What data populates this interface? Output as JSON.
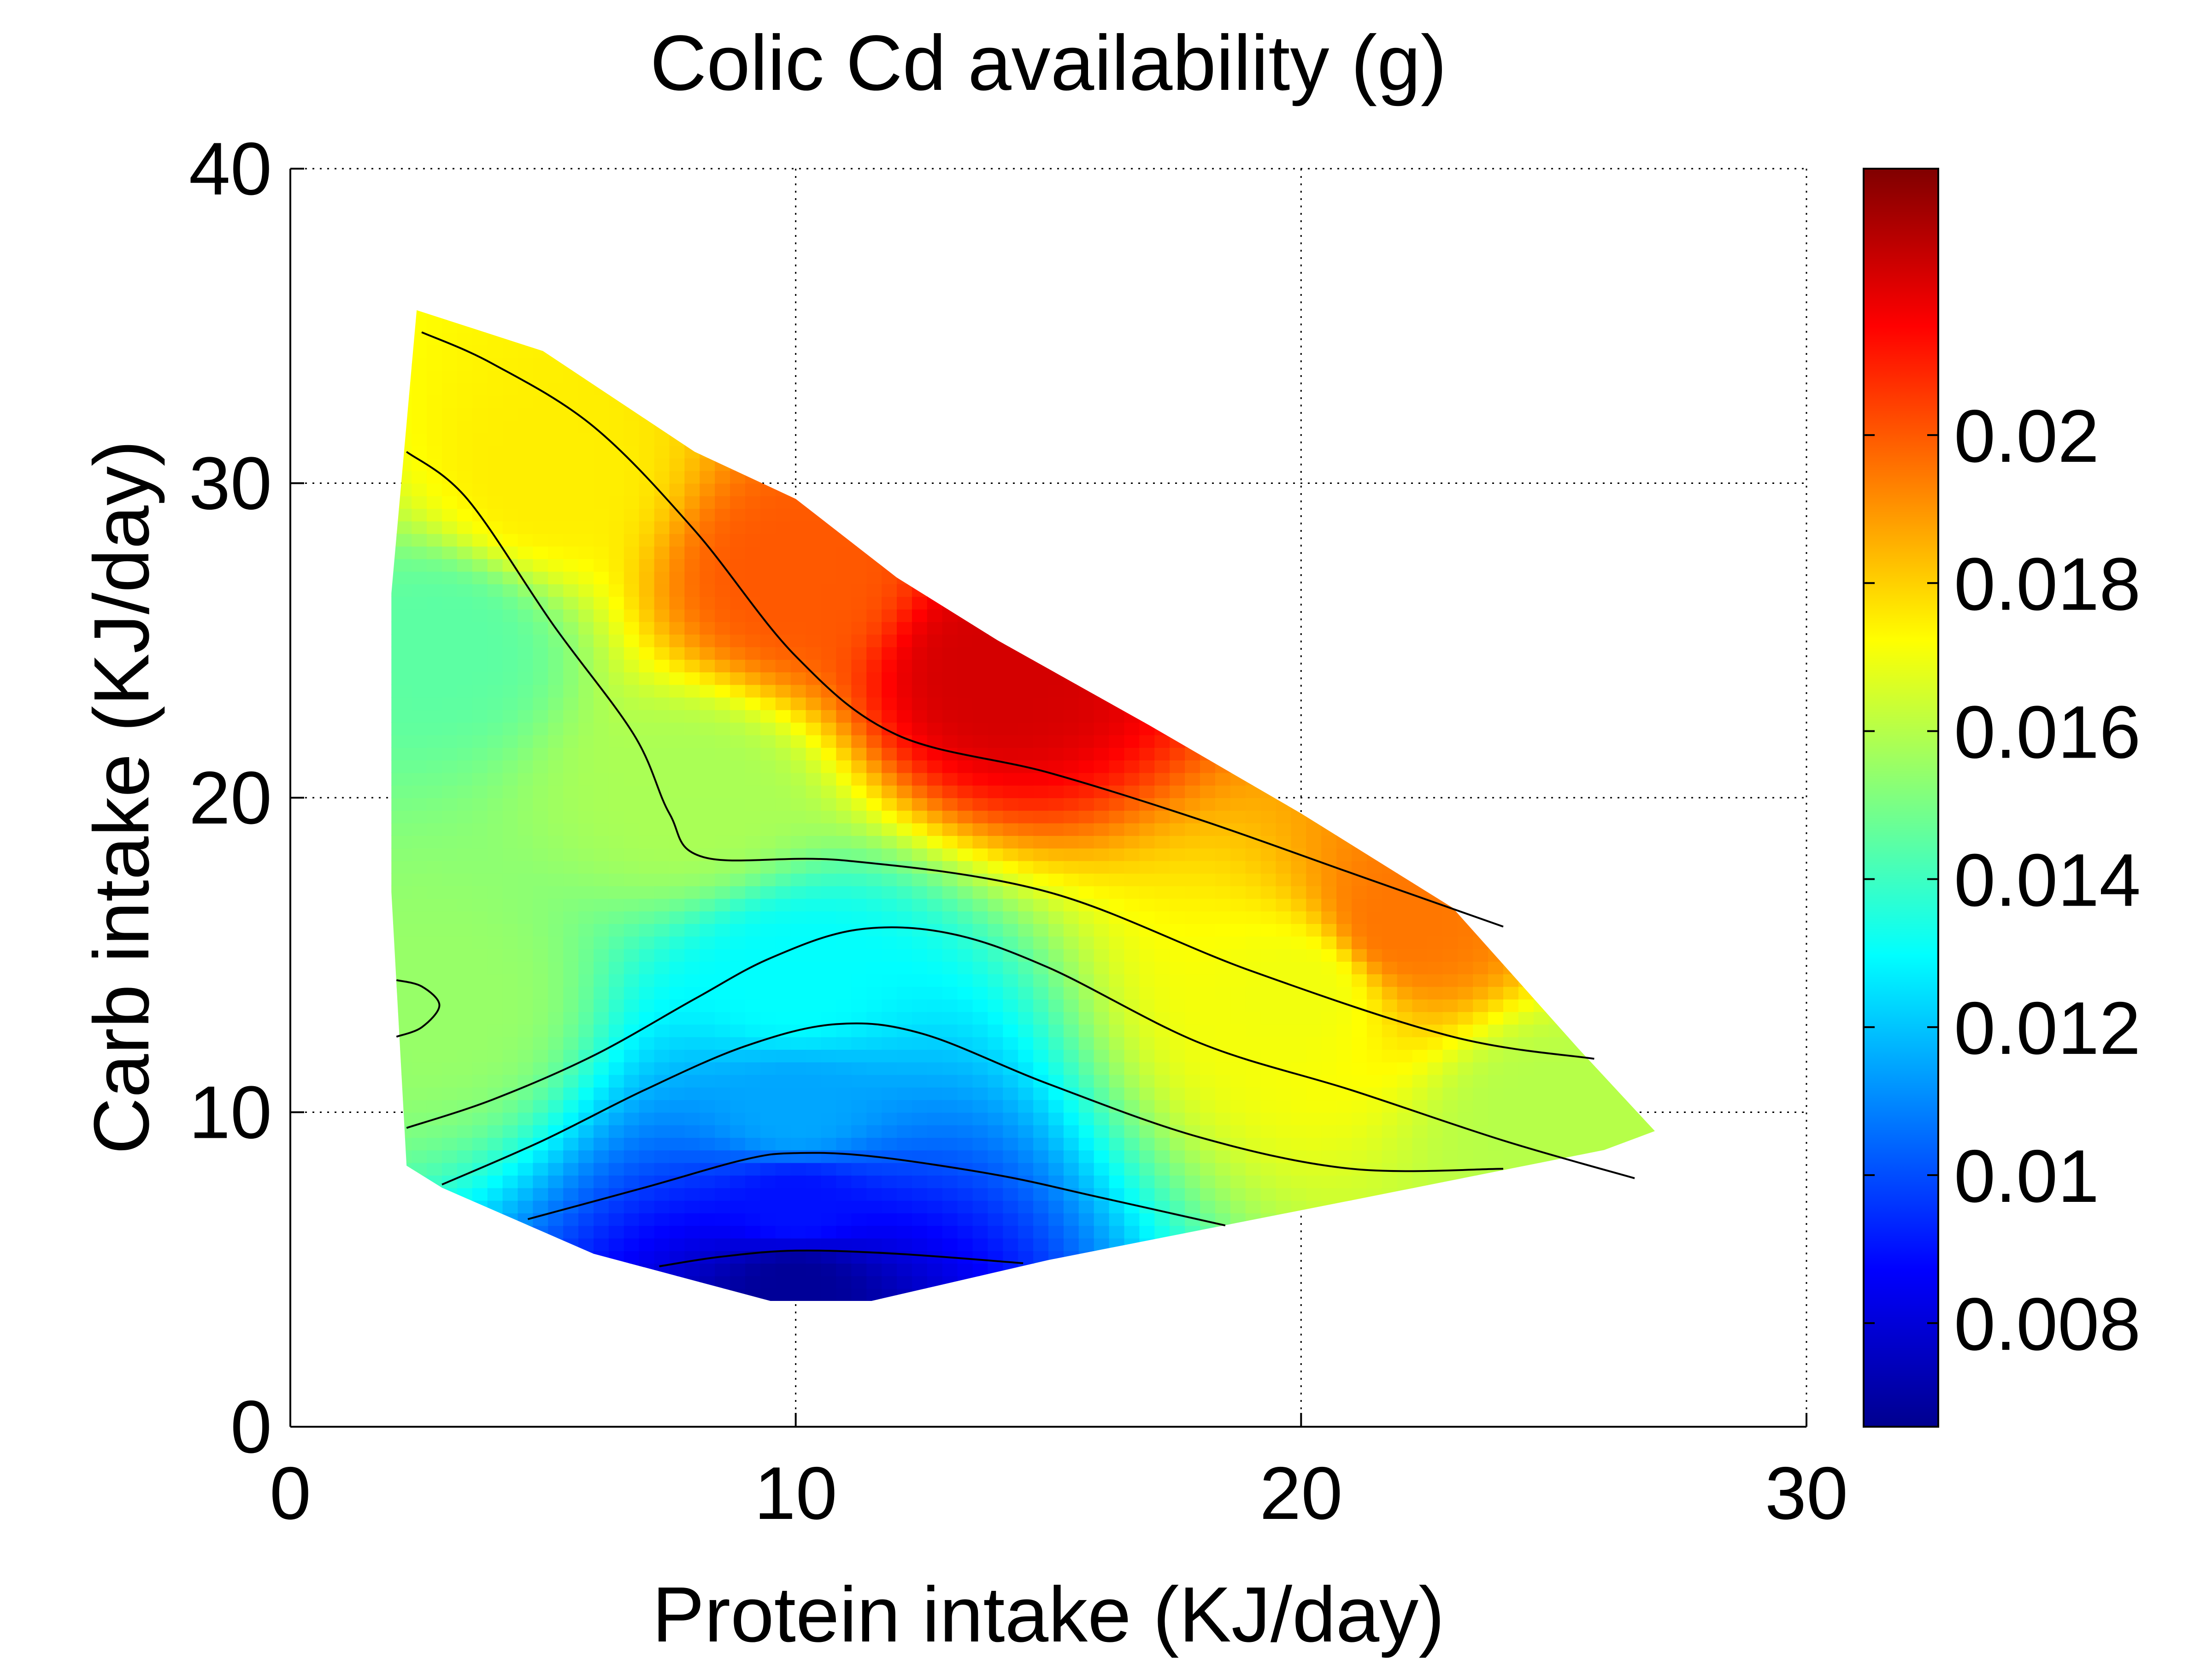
{
  "chart_data": {
    "type": "heatmap",
    "title": "Colic Cd availability (g)",
    "xlabel": "Protein intake (KJ/day)",
    "ylabel": "Carb intake (KJ/day)",
    "xlim": [
      0,
      30
    ],
    "ylim": [
      0,
      40
    ],
    "xticks": [
      0,
      10,
      20,
      30
    ],
    "yticks": [
      0,
      10,
      20,
      30,
      40
    ],
    "grid": true,
    "colormap": "jet",
    "colorbar": {
      "location": "right",
      "range": [
        0.0066,
        0.0236
      ],
      "ticks": [
        0.008,
        0.01,
        0.012,
        0.014,
        0.016,
        0.018,
        0.02
      ],
      "tick_labels": [
        "0.008",
        "0.01",
        "0.012",
        "0.014",
        "0.016",
        "0.018",
        "0.02"
      ]
    },
    "domain_boundary": [
      [
        2.0,
        26.5
      ],
      [
        2.5,
        35.5
      ],
      [
        5,
        34.2
      ],
      [
        8,
        31.0
      ],
      [
        10,
        29.5
      ],
      [
        12,
        27.0
      ],
      [
        14,
        25.0
      ],
      [
        17,
        22.3
      ],
      [
        20,
        19.5
      ],
      [
        23,
        16.5
      ],
      [
        25.5,
        12.0
      ],
      [
        27,
        9.4
      ],
      [
        26,
        8.8
      ],
      [
        21,
        7.2
      ],
      [
        15,
        5.3
      ],
      [
        11.5,
        4.0
      ],
      [
        9.5,
        4.0
      ],
      [
        6,
        5.5
      ],
      [
        3,
        7.6
      ],
      [
        2.3,
        8.3
      ],
      [
        2.0,
        17.0
      ]
    ],
    "surface_samples": [
      {
        "x": 3,
        "y": 25,
        "z": 0.0145
      },
      {
        "x": 3,
        "y": 13.5,
        "z": 0.0155
      },
      {
        "x": 5,
        "y": 30,
        "z": 0.0175
      },
      {
        "x": 8,
        "y": 20,
        "z": 0.0158
      },
      {
        "x": 10,
        "y": 27,
        "z": 0.02
      },
      {
        "x": 14,
        "y": 24,
        "z": 0.0222
      },
      {
        "x": 10,
        "y": 14,
        "z": 0.013
      },
      {
        "x": 10,
        "y": 10,
        "z": 0.0115
      },
      {
        "x": 10,
        "y": 7,
        "z": 0.009
      },
      {
        "x": 10,
        "y": 4.5,
        "z": 0.007
      },
      {
        "x": 20,
        "y": 14,
        "z": 0.017
      },
      {
        "x": 22,
        "y": 16,
        "z": 0.0195
      },
      {
        "x": 25,
        "y": 10,
        "z": 0.016
      }
    ],
    "contour_lines": [
      {
        "points": [
          [
            2.6,
            34.8
          ],
          [
            4,
            33.8
          ],
          [
            6,
            31.8
          ],
          [
            8,
            28.5
          ],
          [
            10,
            24.5
          ],
          [
            12,
            22.0
          ],
          [
            15,
            20.8
          ],
          [
            18,
            19.3
          ],
          [
            21,
            17.6
          ],
          [
            24,
            15.9
          ]
        ]
      },
      {
        "points": [
          [
            2.3,
            31.0
          ],
          [
            3.5,
            29.5
          ],
          [
            5.2,
            25.5
          ],
          [
            6.8,
            22.0
          ],
          [
            7.5,
            19.5
          ],
          [
            8.2,
            18.1
          ],
          [
            11,
            18.0
          ],
          [
            15,
            17.0
          ],
          [
            19,
            14.5
          ],
          [
            23,
            12.4
          ],
          [
            25.8,
            11.7
          ]
        ]
      },
      {
        "points": [
          [
            2.3,
            9.5
          ],
          [
            4,
            10.4
          ],
          [
            6,
            11.8
          ],
          [
            8,
            13.6
          ],
          [
            9.5,
            14.9
          ],
          [
            11.2,
            15.8
          ],
          [
            13,
            15.7
          ],
          [
            15,
            14.6
          ],
          [
            18,
            12.2
          ],
          [
            21,
            10.7
          ],
          [
            24,
            9.1
          ],
          [
            26.6,
            7.9
          ]
        ]
      },
      {
        "points": [
          [
            3,
            7.7
          ],
          [
            5,
            9.1
          ],
          [
            7,
            10.7
          ],
          [
            9,
            12.1
          ],
          [
            10.8,
            12.8
          ],
          [
            12.5,
            12.5
          ],
          [
            15,
            10.9
          ],
          [
            18,
            9.2
          ],
          [
            21,
            8.2
          ],
          [
            24,
            8.2
          ]
        ]
      },
      {
        "points": [
          [
            4.7,
            6.6
          ],
          [
            7,
            7.6
          ],
          [
            9,
            8.5
          ],
          [
            10,
            8.7
          ],
          [
            11.5,
            8.6
          ],
          [
            14,
            8.0
          ],
          [
            16,
            7.3
          ],
          [
            18.5,
            6.4
          ]
        ]
      },
      {
        "points": [
          [
            7.3,
            5.1
          ],
          [
            8.5,
            5.4
          ],
          [
            10,
            5.6
          ],
          [
            12,
            5.5
          ],
          [
            14.5,
            5.2
          ]
        ]
      },
      {
        "points": [
          [
            2.1,
            14.2
          ],
          [
            2.6,
            14.0
          ],
          [
            2.95,
            13.4
          ],
          [
            2.6,
            12.7
          ],
          [
            2.1,
            12.4
          ]
        ]
      }
    ]
  }
}
